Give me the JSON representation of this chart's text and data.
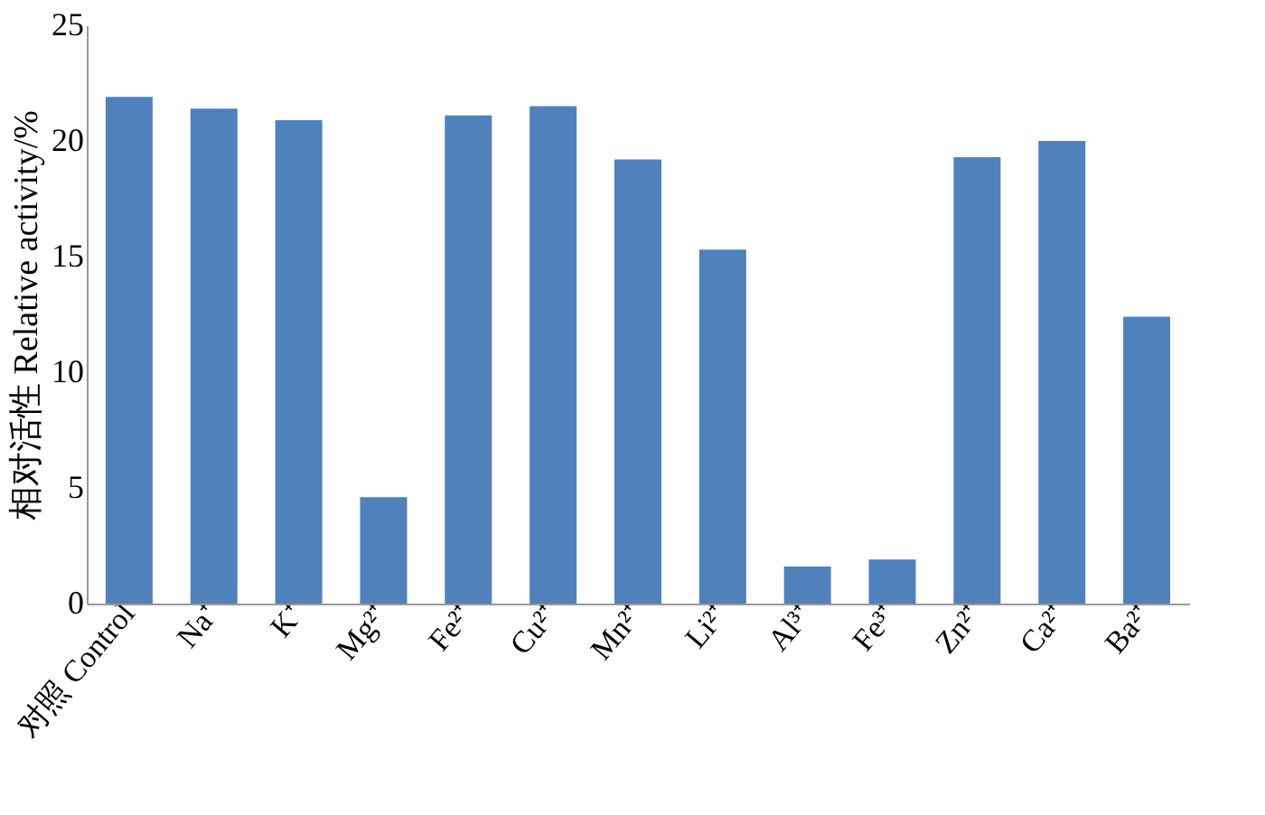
{
  "chart_data": {
    "type": "bar",
    "ylabel": "相对活性 Relative activity/%",
    "categories": [
      "对照 Control",
      "Na⁺",
      "K⁺",
      "Mg²⁺",
      "Fe²⁺",
      "Cu²⁺",
      "Mn²⁺",
      "Li²⁺",
      "Al³⁺",
      "Fe³⁺",
      "Zn²⁺",
      "Ca²⁺",
      "Ba²⁺"
    ],
    "values": [
      21.9,
      21.4,
      20.9,
      4.6,
      21.1,
      21.5,
      19.2,
      15.3,
      1.6,
      1.9,
      19.3,
      20.0,
      12.4
    ],
    "color": "#4f81bd",
    "ylim": [
      0,
      25
    ],
    "yticks": [
      0,
      5,
      10,
      15,
      20,
      25
    ],
    "grid": false
  }
}
